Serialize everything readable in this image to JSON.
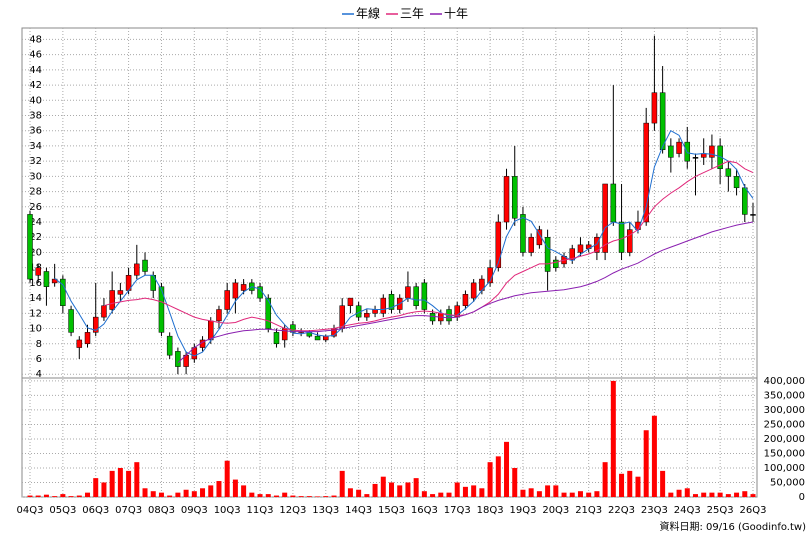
{
  "chart_data": {
    "type": "candlestick",
    "categories": [
      "04Q3",
      null,
      null,
      null,
      "05Q3",
      null,
      null,
      null,
      "06Q3",
      null,
      null,
      null,
      "07Q3",
      null,
      null,
      null,
      "08Q3",
      null,
      null,
      null,
      "09Q3",
      null,
      null,
      null,
      "10Q3",
      null,
      null,
      null,
      "11Q3",
      null,
      null,
      null,
      "12Q3",
      null,
      null,
      null,
      "13Q3",
      null,
      null,
      null,
      "14Q3",
      null,
      null,
      null,
      "15Q3",
      null,
      null,
      null,
      "16Q3",
      null,
      null,
      null,
      "17Q3",
      null,
      null,
      null,
      "18Q3",
      null,
      null,
      null,
      "19Q3",
      null,
      null,
      null,
      "20Q3",
      null,
      null,
      null,
      "21Q3",
      null,
      null,
      null,
      "22Q3",
      null,
      null,
      null,
      "23Q3",
      null,
      null,
      null,
      "24Q3",
      null,
      null,
      null,
      "25Q3",
      null,
      null,
      null,
      "26Q3"
    ],
    "open": [
      25,
      17,
      17.5,
      16,
      16.5,
      12.5,
      7.5,
      8,
      9.5,
      11.5,
      12.5,
      14.5,
      15,
      17,
      19,
      17,
      15.5,
      9,
      7,
      5,
      6,
      7.5,
      8.5,
      11,
      12.5,
      14,
      15,
      16,
      15.5,
      14,
      9.5,
      8.5,
      10.5,
      9.5,
      9.5,
      9,
      8.5,
      9,
      10,
      13,
      13,
      11.5,
      12,
      12,
      14.5,
      12.5,
      14,
      15.5,
      16,
      12,
      11,
      12.5,
      11.5,
      13,
      14,
      15,
      16,
      18,
      24,
      30,
      25,
      20,
      21,
      22,
      19,
      18.5,
      19,
      20,
      20.5,
      20,
      20,
      29,
      24,
      20,
      23,
      24,
      37,
      41,
      34,
      33,
      34.5,
      32.5,
      32.5,
      32.5,
      34,
      31,
      30,
      28.5,
      25
    ],
    "high": [
      25.5,
      18.5,
      18,
      18.5,
      17,
      13,
      9,
      10.5,
      16,
      14,
      17.5,
      16,
      18,
      21,
      20,
      17.5,
      16,
      9.5,
      7.5,
      7,
      8,
      9,
      11.5,
      13,
      16,
      16.5,
      16.5,
      16.5,
      16,
      14.5,
      10,
      10.5,
      11,
      10,
      9.8,
      9.5,
      9.2,
      10.5,
      14,
      14,
      13.5,
      12.5,
      13,
      14.5,
      15,
      14.5,
      17.5,
      16,
      16.5,
      12.5,
      12.5,
      13,
      13.5,
      15,
      16.5,
      17,
      19,
      25,
      31,
      34,
      26,
      22.5,
      23.5,
      23,
      19.5,
      20,
      21,
      22,
      21.5,
      22.5,
      29,
      42,
      29,
      24,
      25.5,
      39,
      48.5,
      44.5,
      35,
      35,
      36.5,
      33,
      35,
      35.5,
      35,
      32,
      31,
      29,
      26.5
    ],
    "low": [
      16,
      16,
      13,
      15.5,
      12,
      9,
      6,
      7.5,
      9,
      11,
      12,
      13.5,
      14.5,
      16.5,
      17,
      14,
      9,
      6,
      4,
      4,
      5.5,
      7,
      8,
      10,
      12,
      12,
      14.5,
      14.5,
      13.5,
      9.5,
      7.5,
      7.5,
      9,
      9,
      8.8,
      8.5,
      8.2,
      8.8,
      9.5,
      12,
      11,
      11,
      11.5,
      11.5,
      12,
      12,
      13.5,
      12.5,
      12,
      10.5,
      10.5,
      10.5,
      11,
      12.5,
      13.5,
      14.5,
      15.5,
      17.5,
      23,
      23.5,
      19.5,
      19.5,
      20.5,
      15,
      17.5,
      18,
      18.5,
      19.5,
      20,
      19,
      19,
      23.5,
      19,
      19.5,
      22.5,
      23.5,
      36,
      33,
      30.5,
      32.5,
      31,
      27.5,
      31.5,
      31,
      29,
      28,
      27.5,
      24,
      24
    ],
    "close": [
      16.5,
      18,
      15.5,
      16.5,
      13,
      9.5,
      8.5,
      9.5,
      11.5,
      13,
      15,
      15,
      17,
      18.5,
      17.5,
      15,
      9.5,
      6.5,
      5,
      6.5,
      7.5,
      8.5,
      11,
      12.5,
      15,
      16,
      15.8,
      15,
      14,
      10,
      8,
      10,
      9.5,
      9.6,
      9,
      8.5,
      9,
      10,
      13,
      14,
      11.5,
      12,
      12.5,
      14,
      12.5,
      14,
      15.5,
      13,
      12.5,
      11,
      12,
      11,
      13,
      14.5,
      16,
      16.5,
      18,
      24,
      30,
      24.5,
      20,
      22,
      23,
      17.5,
      18,
      19.5,
      20.5,
      21,
      21,
      22,
      29,
      24,
      20,
      23,
      24,
      37,
      41,
      33.5,
      32.5,
      34.5,
      32,
      32.5,
      33,
      34,
      31,
      30,
      28.5,
      25,
      25
    ],
    "volume": [
      5000,
      5000,
      8000,
      3000,
      10000,
      3000,
      5000,
      15000,
      65000,
      50000,
      90000,
      100000,
      90000,
      120000,
      30000,
      20000,
      15000,
      5000,
      15000,
      25000,
      20000,
      30000,
      40000,
      55000,
      125000,
      60000,
      40000,
      15000,
      10000,
      10000,
      5000,
      15000,
      5000,
      3000,
      3000,
      2000,
      3000,
      5000,
      90000,
      30000,
      25000,
      10000,
      45000,
      70000,
      50000,
      40000,
      50000,
      65000,
      20000,
      10000,
      15000,
      15000,
      50000,
      35000,
      40000,
      30000,
      120000,
      140000,
      190000,
      100000,
      25000,
      30000,
      20000,
      40000,
      40000,
      15000,
      15000,
      20000,
      15000,
      20000,
      120000,
      400000,
      80000,
      90000,
      70000,
      230000,
      280000,
      90000,
      15000,
      25000,
      30000,
      10000,
      15000,
      15000,
      15000,
      10000,
      15000,
      20000,
      10000
    ],
    "up_color": "#ff0000",
    "down_color": "#00c000",
    "volume_color": "#ff0000",
    "series": [
      {
        "name": "年線",
        "color": "#1f6fd0",
        "values": [
          null,
          null,
          null,
          16.6,
          15.75,
          13.6,
          11.9,
          10.1,
          9.75,
          10.6,
          12.25,
          13.6,
          15,
          16.4,
          17,
          17,
          15.1,
          12.1,
          9,
          6.9,
          6.4,
          6.9,
          8.4,
          9.9,
          11.75,
          13.6,
          14.8,
          15.5,
          15.2,
          13.7,
          11.75,
          10.5,
          9.4,
          9.3,
          9.5,
          9.15,
          9,
          9.1,
          10.1,
          11.5,
          12.1,
          12.6,
          12.5,
          12.5,
          12.75,
          13.25,
          14,
          13.75,
          13.75,
          13,
          12.1,
          11.6,
          11.75,
          12.6,
          13.6,
          15,
          16.25,
          18.6,
          22.1,
          24.1,
          24.6,
          24.1,
          22.4,
          20.6,
          20.1,
          19.5,
          18.9,
          19.75,
          20.5,
          21.1,
          23.25,
          24,
          23.75,
          24,
          22.75,
          26,
          31.25,
          33.9,
          36,
          35.4,
          33.1,
          32.9,
          33,
          32.9,
          32.6,
          32,
          30.9,
          28.6,
          27.1
        ]
      },
      {
        "name": "三年",
        "color": "#e0287a",
        "values": [
          null,
          null,
          null,
          null,
          null,
          null,
          null,
          null,
          null,
          13,
          13.3,
          13.5,
          13.7,
          13.8,
          14,
          13.8,
          13.5,
          13,
          12.5,
          12,
          11.5,
          11.2,
          11,
          10.8,
          10.7,
          10.8,
          11.2,
          11.5,
          11.3,
          11,
          10.5,
          10,
          9.8,
          9.7,
          9.7,
          9.8,
          9.9,
          10,
          10.3,
          10.5,
          10.7,
          10.8,
          11,
          11.3,
          11.5,
          11.7,
          12,
          12.2,
          12.3,
          12.2,
          12,
          11.8,
          11.7,
          11.8,
          12.2,
          12.8,
          13.5,
          14.5,
          16,
          17,
          17.5,
          18,
          18.5,
          18.5,
          18.7,
          19,
          19.2,
          19.5,
          19.8,
          20.2,
          21,
          21.5,
          21.8,
          22.3,
          23,
          24.5,
          26,
          27,
          27.8,
          28.5,
          29.3,
          30,
          30.5,
          31,
          31.5,
          32,
          31.8,
          31,
          30.5
        ]
      },
      {
        "name": "十年",
        "color": "#8a1fb0",
        "values": [
          null,
          null,
          null,
          null,
          null,
          null,
          null,
          null,
          null,
          null,
          null,
          null,
          null,
          null,
          null,
          null,
          null,
          null,
          5.5,
          6.5,
          7.5,
          8.2,
          8.7,
          9,
          9.3,
          9.5,
          9.7,
          9.8,
          9.9,
          9.9,
          9.8,
          9.7,
          9.6,
          9.6,
          9.6,
          9.6,
          9.7,
          9.8,
          10,
          10.2,
          10.4,
          10.6,
          10.8,
          11,
          11.2,
          11.4,
          11.6,
          11.7,
          11.7,
          11.6,
          11.5,
          11.4,
          11.5,
          11.8,
          12.2,
          12.8,
          13.3,
          13.7,
          14,
          14.3,
          14.5,
          14.7,
          14.8,
          14.9,
          15,
          15.1,
          15.3,
          15.5,
          15.8,
          16.2,
          16.7,
          17.3,
          17.8,
          18.2,
          18.6,
          19.2,
          19.8,
          20.3,
          20.7,
          21.1,
          21.5,
          21.9,
          22.3,
          22.7,
          23,
          23.3,
          23.6,
          23.8,
          24
        ]
      }
    ],
    "ylim": [
      3.5,
      49.5
    ],
    "yticks": [
      4,
      6,
      8,
      10,
      12,
      14,
      16,
      18,
      20,
      22,
      24,
      26,
      28,
      30,
      32,
      34,
      36,
      38,
      40,
      42,
      44,
      46,
      48
    ],
    "y2lim": [
      0,
      410000
    ],
    "y2ticks": [
      0,
      {
        "value": 50000,
        "label": "50,000"
      },
      {
        "value": 100000,
        "label": "100,000"
      },
      {
        "value": 150000,
        "label": "150,000"
      },
      {
        "value": 200000,
        "label": "200,000"
      },
      {
        "value": 250000,
        "label": "250,000"
      },
      {
        "value": 300000,
        "label": "300,000"
      },
      {
        "value": 350000,
        "label": "350,000"
      },
      {
        "value": 400000,
        "label": "400,000"
      }
    ],
    "grid": true,
    "legend": "top",
    "source_note": "資料日期: 09/16 (Goodinfo.tw)"
  }
}
